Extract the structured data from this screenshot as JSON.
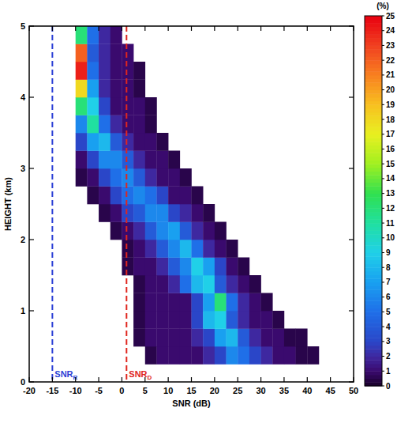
{
  "chart_data": {
    "type": "heatmap",
    "x_label": "SNR (dB)",
    "y_label": "HEIGHT (km)",
    "xlim": [
      -20,
      50
    ],
    "xticks": [
      -20,
      -15,
      -10,
      -5,
      0,
      5,
      10,
      15,
      20,
      25,
      30,
      35,
      40,
      45,
      50
    ],
    "ylim": [
      0,
      5
    ],
    "yticks": [
      0,
      1,
      2,
      3,
      4,
      5
    ],
    "x_bins": [
      -10,
      -7.5,
      -5,
      -2.5,
      0,
      2.5,
      5,
      7.5,
      10,
      12.5,
      15,
      17.5,
      20,
      22.5,
      25,
      27.5,
      30,
      32.5,
      35,
      37.5,
      40,
      42.5,
      45
    ],
    "y_bins": [
      0.25,
      0.5,
      0.75,
      1.0,
      1.25,
      1.5,
      1.75,
      2.0,
      2.25,
      2.5,
      2.75,
      3.0,
      3.25,
      3.5,
      3.75,
      4.0,
      4.25,
      4.5,
      4.75,
      5.0
    ],
    "cells": [
      [
        null,
        null,
        null,
        null,
        null,
        null,
        0.5,
        1,
        1,
        1,
        1,
        2,
        3,
        6,
        5,
        3,
        2,
        1,
        1,
        0.5,
        0.5,
        null
      ],
      [
        null,
        null,
        null,
        null,
        null,
        0.5,
        1,
        1,
        1,
        1,
        2,
        3,
        7,
        8,
        4,
        2,
        1,
        1,
        0.5,
        0.5,
        null,
        null
      ],
      [
        null,
        null,
        null,
        null,
        null,
        0.5,
        1,
        1,
        1,
        1,
        3,
        8,
        9,
        4,
        2,
        1,
        1,
        0.5,
        null,
        null,
        null,
        null
      ],
      [
        null,
        null,
        null,
        null,
        null,
        0.5,
        1,
        1,
        1,
        1,
        3,
        7,
        12,
        5,
        2,
        1,
        0.5,
        null,
        null,
        null,
        null,
        null
      ],
      [
        null,
        null,
        null,
        null,
        null,
        0.5,
        1,
        1,
        2,
        5,
        8,
        9,
        4,
        2,
        1,
        0.5,
        null,
        null,
        null,
        null,
        null,
        null
      ],
      [
        null,
        null,
        null,
        null,
        0.5,
        1,
        1,
        2,
        4,
        6,
        9,
        7,
        3,
        1,
        0.5,
        null,
        null,
        null,
        null,
        null,
        null,
        null
      ],
      [
        null,
        null,
        null,
        null,
        0.5,
        1,
        2,
        4,
        6,
        8,
        5,
        2,
        1,
        0.5,
        null,
        null,
        null,
        null,
        null,
        null,
        null,
        null
      ],
      [
        null,
        null,
        null,
        0.5,
        1,
        2,
        4,
        6,
        7,
        4,
        2,
        1,
        0.5,
        null,
        null,
        null,
        null,
        null,
        null,
        null,
        null,
        null
      ],
      [
        null,
        null,
        0.5,
        1,
        3,
        4,
        6,
        6,
        3,
        2,
        1,
        0.5,
        null,
        null,
        null,
        null,
        null,
        null,
        null,
        null,
        null,
        null
      ],
      [
        null,
        0.5,
        1,
        3,
        5,
        6,
        5,
        3,
        1,
        1,
        0.5,
        null,
        null,
        null,
        null,
        null,
        null,
        null,
        null,
        null,
        null,
        null
      ],
      [
        0.5,
        1,
        3,
        5,
        6,
        4,
        2,
        1,
        1,
        0.5,
        null,
        null,
        null,
        null,
        null,
        null,
        null,
        null,
        null,
        null,
        null,
        null
      ],
      [
        1,
        3,
        6,
        6,
        4,
        2,
        1,
        1,
        0.5,
        null,
        null,
        null,
        null,
        null,
        null,
        null,
        null,
        null,
        null,
        null,
        null,
        null
      ],
      [
        3,
        7,
        8,
        4,
        2,
        1,
        1,
        0.5,
        null,
        null,
        null,
        null,
        null,
        null,
        null,
        null,
        null,
        null,
        null,
        null,
        null,
        null
      ],
      [
        6,
        11,
        5,
        2,
        1,
        1,
        0.5,
        null,
        null,
        null,
        null,
        null,
        null,
        null,
        null,
        null,
        null,
        null,
        null,
        null,
        null,
        null
      ],
      [
        12,
        9,
        3,
        1,
        1,
        1,
        0.5,
        null,
        null,
        null,
        null,
        null,
        null,
        null,
        null,
        null,
        null,
        null,
        null,
        null,
        null,
        null
      ],
      [
        18,
        7,
        2,
        1,
        1,
        0.5,
        null,
        null,
        null,
        null,
        null,
        null,
        null,
        null,
        null,
        null,
        null,
        null,
        null,
        null,
        null,
        null
      ],
      [
        24,
        5,
        2,
        1,
        1,
        0.5,
        null,
        null,
        null,
        null,
        null,
        null,
        null,
        null,
        null,
        null,
        null,
        null,
        null,
        null,
        null,
        null
      ],
      [
        22,
        4,
        2,
        1,
        1,
        null,
        null,
        null,
        null,
        null,
        null,
        null,
        null,
        null,
        null,
        null,
        null,
        null,
        null,
        null,
        null,
        null
      ],
      [
        12,
        5,
        2,
        1,
        null,
        null,
        null,
        null,
        null,
        null,
        null,
        null,
        null,
        null,
        null,
        null,
        null,
        null,
        null,
        null,
        null,
        null
      ]
    ],
    "colorbar": {
      "label": "(%)",
      "range": [
        0,
        25
      ],
      "ticks": [
        0,
        1,
        2,
        3,
        4,
        5,
        6,
        7,
        8,
        9,
        10,
        11,
        12,
        13,
        14,
        15,
        16,
        17,
        18,
        19,
        20,
        21,
        22,
        23,
        24,
        25
      ]
    },
    "annotations": [
      {
        "x": -15,
        "text": "SNR",
        "subscript": "R",
        "color": "#2a3fd6",
        "line_style": "dashed"
      },
      {
        "x": 1,
        "text": "SNR",
        "subscript": "D",
        "color": "#e0261e",
        "line_style": "dashed"
      }
    ]
  }
}
